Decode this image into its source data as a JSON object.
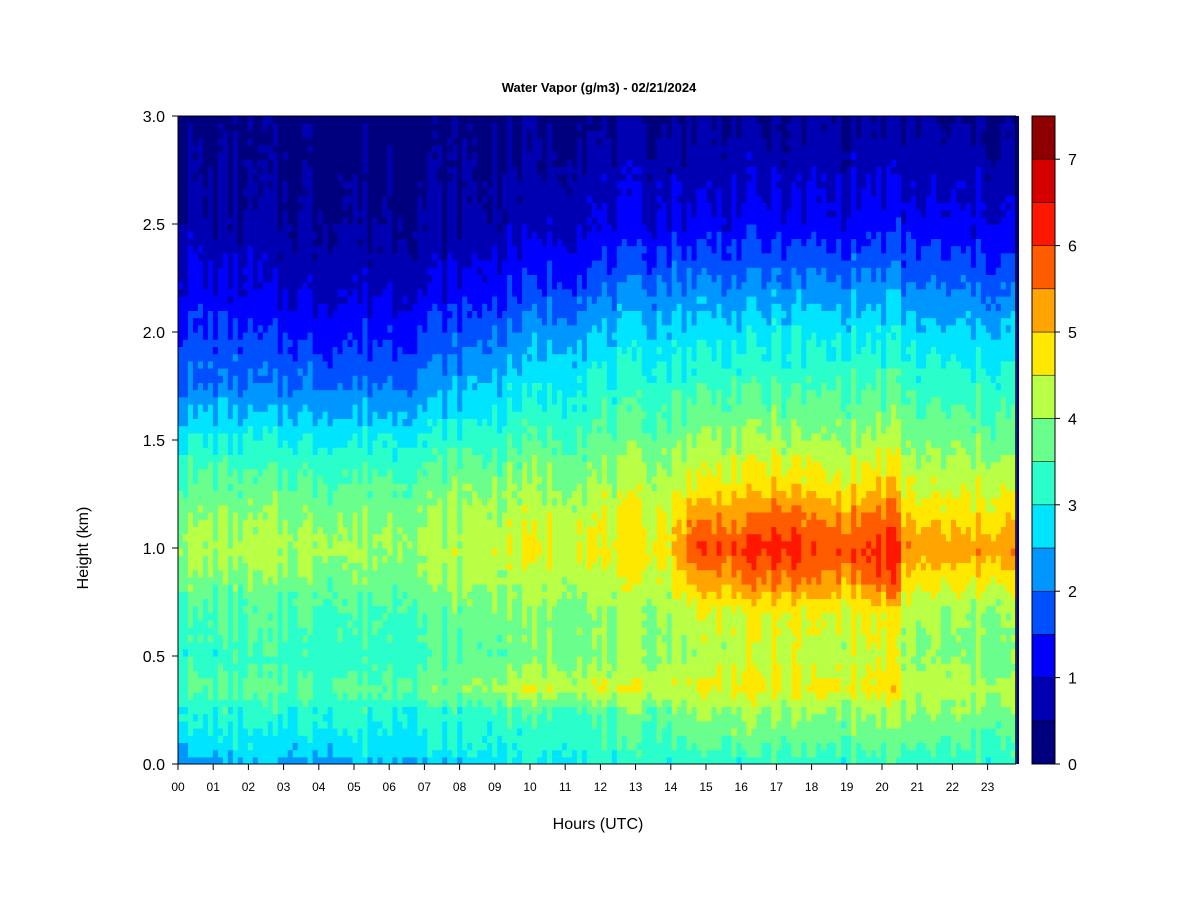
{
  "chart_data": {
    "type": "heatmap",
    "title": "Water Vapor (g/m3) - 02/21/2024",
    "xlabel": "Hours (UTC)",
    "ylabel": "Height (km)",
    "xlim": [
      0,
      24
    ],
    "ylim": [
      0.0,
      3.0
    ],
    "x_ticks": [
      "00",
      "01",
      "02",
      "03",
      "04",
      "05",
      "06",
      "07",
      "08",
      "09",
      "10",
      "11",
      "12",
      "13",
      "14",
      "15",
      "16",
      "17",
      "18",
      "19",
      "20",
      "21",
      "22",
      "23"
    ],
    "y_ticks": [
      "0.0",
      "0.5",
      "1.0",
      "1.5",
      "2.0",
      "2.5",
      "3.0"
    ],
    "colorbar": {
      "levels": [
        0,
        0.5,
        1,
        1.5,
        2,
        2.5,
        3,
        3.5,
        4,
        4.5,
        5,
        5.5,
        6,
        6.5,
        7,
        7.5
      ],
      "ticks": [
        "0",
        "1",
        "2",
        "3",
        "4",
        "5",
        "6",
        "7"
      ],
      "colors": [
        "#00007f",
        "#0000b2",
        "#0000ff",
        "#0050ff",
        "#0096ff",
        "#00e4ff",
        "#2affcc",
        "#6aff8d",
        "#b8ff46",
        "#ffe800",
        "#ffa400",
        "#ff5c00",
        "#ff1800",
        "#d40000",
        "#8e0000"
      ]
    },
    "x": [
      0,
      2,
      4,
      6,
      8,
      10,
      12,
      14,
      14.6,
      16,
      17.3,
      18,
      19,
      20.4,
      20.6,
      22,
      23.8
    ],
    "y": [
      0.0,
      0.05,
      0.15,
      0.25,
      0.35,
      0.5,
      0.7,
      0.85,
      1.0,
      1.15,
      1.3,
      1.5,
      1.75,
      2.0,
      2.25,
      2.5,
      2.75,
      3.0
    ],
    "z": [
      [
        2.2,
        2.2,
        2.3,
        2.4,
        2.6,
        3.0,
        3.1,
        3.2,
        3.2,
        3.2,
        3.2,
        3.2,
        3.2,
        3.3,
        3.2,
        3.1,
        3.2
      ],
      [
        2.6,
        2.7,
        2.7,
        2.8,
        2.9,
        3.1,
        3.2,
        3.3,
        3.4,
        3.4,
        3.4,
        3.4,
        3.4,
        3.5,
        3.4,
        3.3,
        3.3
      ],
      [
        2.9,
        2.9,
        2.9,
        3.0,
        3.1,
        3.2,
        3.4,
        3.5,
        3.8,
        3.8,
        3.8,
        3.7,
        3.7,
        3.9,
        3.7,
        3.6,
        3.6
      ],
      [
        3.2,
        3.2,
        3.2,
        3.2,
        3.3,
        3.5,
        3.6,
        3.8,
        4.0,
        4.1,
        4.1,
        4.0,
        4.0,
        4.2,
        4.0,
        3.9,
        3.9
      ],
      [
        3.6,
        3.6,
        3.6,
        3.6,
        3.9,
        4.4,
        4.4,
        4.4,
        4.5,
        4.6,
        4.6,
        4.5,
        4.6,
        4.8,
        4.3,
        4.2,
        4.1
      ],
      [
        3.2,
        3.3,
        3.3,
        3.3,
        3.5,
        3.8,
        3.9,
        4.0,
        4.2,
        4.3,
        4.3,
        4.2,
        4.2,
        4.5,
        4.0,
        3.8,
        3.8
      ],
      [
        3.4,
        3.5,
        3.5,
        3.5,
        3.7,
        3.9,
        4.0,
        4.1,
        4.4,
        4.5,
        4.6,
        4.5,
        4.5,
        4.8,
        4.2,
        4.0,
        4.0
      ],
      [
        3.8,
        3.8,
        3.8,
        3.8,
        4.0,
        4.2,
        4.3,
        4.4,
        5.2,
        5.4,
        5.6,
        5.4,
        5.3,
        5.8,
        4.8,
        4.6,
        4.7
      ],
      [
        4.2,
        4.2,
        4.2,
        4.1,
        4.3,
        4.5,
        4.6,
        4.8,
        6.0,
        6.0,
        6.3,
        5.9,
        5.9,
        6.3,
        5.4,
        5.2,
        5.4
      ],
      [
        3.9,
        3.9,
        3.9,
        3.9,
        4.1,
        4.3,
        4.4,
        4.6,
        5.3,
        5.4,
        5.7,
        5.4,
        5.3,
        5.8,
        4.9,
        4.7,
        4.9
      ],
      [
        3.6,
        3.6,
        3.6,
        3.6,
        3.8,
        4.0,
        4.1,
        4.3,
        4.6,
        4.7,
        4.9,
        4.7,
        4.6,
        5.0,
        4.4,
        4.3,
        4.4
      ],
      [
        3.0,
        3.0,
        3.0,
        3.0,
        3.2,
        3.5,
        3.6,
        3.8,
        4.0,
        4.1,
        4.1,
        4.0,
        4.0,
        4.2,
        3.9,
        3.8,
        3.8
      ],
      [
        2.0,
        2.0,
        2.0,
        2.0,
        2.4,
        2.9,
        3.1,
        3.3,
        3.4,
        3.4,
        3.4,
        3.4,
        3.4,
        3.5,
        3.3,
        3.2,
        3.2
      ],
      [
        1.6,
        1.5,
        1.4,
        1.4,
        1.7,
        2.2,
        2.5,
        2.7,
        2.8,
        2.8,
        2.9,
        2.8,
        2.8,
        2.9,
        2.7,
        2.6,
        2.6
      ],
      [
        1.1,
        0.9,
        0.8,
        0.8,
        1.0,
        1.4,
        1.7,
        1.9,
        2.0,
        2.0,
        2.0,
        2.0,
        2.0,
        2.1,
        1.9,
        1.8,
        1.8
      ],
      [
        0.7,
        0.6,
        0.55,
        0.55,
        0.6,
        0.8,
        1.0,
        1.1,
        1.2,
        1.2,
        1.2,
        1.2,
        1.2,
        1.3,
        1.2,
        1.1,
        1.1
      ],
      [
        0.5,
        0.4,
        0.4,
        0.4,
        0.4,
        0.6,
        0.7,
        0.8,
        0.8,
        0.8,
        0.8,
        0.8,
        0.8,
        0.9,
        0.8,
        0.75,
        0.7
      ],
      [
        0.3,
        0.3,
        0.3,
        0.3,
        0.3,
        0.4,
        0.4,
        0.45,
        0.45,
        0.45,
        0.45,
        0.45,
        0.45,
        0.45,
        0.45,
        0.45,
        0.45
      ]
    ]
  }
}
